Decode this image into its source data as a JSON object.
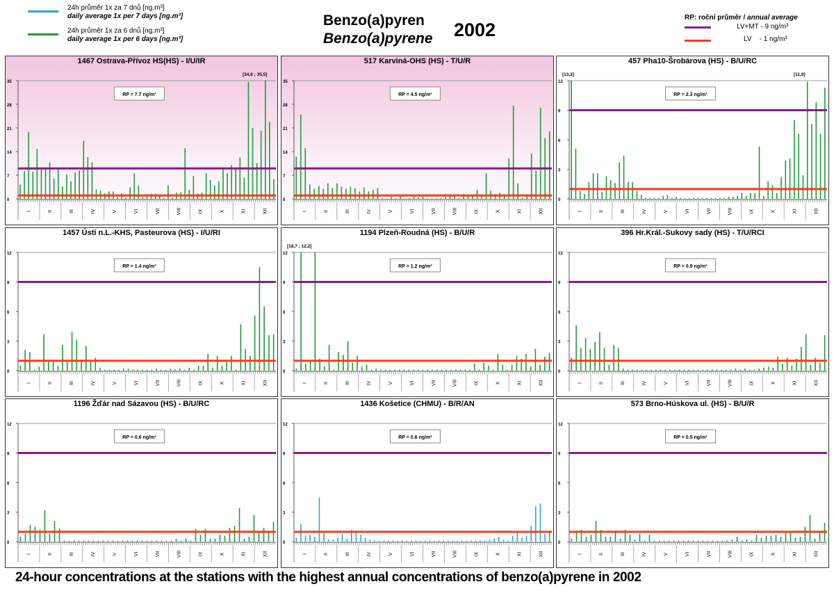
{
  "legend_left": [
    {
      "line1": "24h průměr 1x za 7 dnů [ng.m³]",
      "line2": "daily average 1x per 7 days [ng.m³]",
      "color": "#29a8d8"
    },
    {
      "line1": "24h průměr 1x za 6 dnů [ng.m³]",
      "line2": "daily average 1x per 6 days [ng.m³]",
      "color": "#1e9a3c"
    }
  ],
  "title": {
    "cz": "Benzo(a)pyren",
    "en": "Benzo(a)pyrene",
    "year": "2002"
  },
  "legend_right": {
    "header_bold": "RP:  roční průměr /",
    "header_italic": "annual average",
    "items": [
      {
        "label": "LV+MT  - 9 ng/m³",
        "color": "#8b1a8b",
        "value": 9
      },
      {
        "label": "LV    - 1 ng/m³",
        "color": "#ff3a10",
        "value": 1
      }
    ]
  },
  "caption": "24-hour concentrations at the stations with the highest annual concentrations of benzo(a)pyrene in 2002",
  "chart_data": [
    {
      "type": "bar",
      "title": "1467 Ostrava-Přívoz HS(HS) - I/U/IR",
      "rp": "RP = 7.7 ng/m³",
      "ymax": 35,
      "ticks": [
        0,
        7,
        14,
        21,
        28,
        35
      ],
      "color": "#1e9a3c",
      "pink": true,
      "annotations": [
        {
          "text": "[34,6 ; 35,5]",
          "pos": "right"
        }
      ],
      "months": [
        "I",
        "II",
        "III",
        "IV",
        "V",
        "VI",
        "VII",
        "VIII",
        "IX",
        "X",
        "XI",
        "XII"
      ],
      "values": [
        4.2,
        8.2,
        19.8,
        8,
        14.8,
        8.8,
        8.8,
        10.8,
        6,
        8.8,
        3.6,
        7.2,
        5.2,
        7.8,
        8.4,
        17.2,
        12.4,
        10.8,
        2.8,
        2.4,
        1.6,
        2.2,
        2.2,
        0.5,
        1.6,
        0.4,
        3.4,
        7.6,
        4,
        0.5,
        1.4,
        1.5,
        1.5,
        1.2,
        0.3,
        4,
        0.4,
        1.8,
        2,
        15,
        2.6,
        6.8,
        1.6,
        1.8,
        7.6,
        5.6,
        4,
        5.2,
        9.2,
        7.6,
        10,
        9.2,
        12.2,
        6.2,
        34.6,
        21,
        10.6,
        20.2,
        35.5,
        22.8,
        5.8
      ]
    },
    {
      "type": "bar",
      "title": "517 Karviná-OHS (HS) - T/U/R",
      "rp": "RP = 4.5 ng/m³",
      "ymax": 35,
      "ticks": [
        0,
        7,
        14,
        21,
        28,
        35
      ],
      "color": "#1e9a3c",
      "pink": true,
      "annotations": [],
      "months": [
        "I",
        "II",
        "III",
        "IV",
        "V",
        "VI",
        "VII",
        "VIII",
        "IX",
        "X",
        "XI",
        "XII"
      ],
      "values": [
        12.5,
        25,
        15,
        4.2,
        3,
        3.8,
        3,
        4.6,
        3.2,
        4.6,
        3.6,
        3,
        3.6,
        3.2,
        2.2,
        3.4,
        2.2,
        2.6,
        3.2,
        0.2,
        0.1,
        0.6,
        0.2,
        0.8,
        0.1,
        0.2,
        0.8,
        0.4,
        0.6,
        0.1,
        0.1,
        0.1,
        0.2,
        0.6,
        0.8,
        0.8,
        0.2,
        1.4,
        1,
        1,
        2.6,
        1.2,
        7.6,
        2.4,
        1.4,
        1.8,
        1.4,
        12,
        27.6,
        4.6,
        0.3,
        1.2,
        13.4,
        8.4,
        27,
        18,
        20
      ]
    },
    {
      "type": "bar",
      "title": "457 Pha10-Šrobárova (HS) - B/U/RC",
      "rp": "RP = 2.3 ng/m³",
      "ymax": 12,
      "ticks": [
        0,
        3,
        6,
        9,
        12
      ],
      "color": "#1e9a3c",
      "pink": false,
      "annotations": [
        {
          "text": "[13,2]",
          "pos": "left"
        },
        {
          "text": "[11,9]",
          "pos": "right"
        }
      ],
      "months": [
        "I",
        "II",
        "III",
        "IV",
        "V",
        "VI",
        "VII",
        "VIII",
        "IX",
        "X",
        "XI",
        "XII"
      ],
      "values": [
        13.2,
        5.1,
        0.8,
        0.5,
        1.7,
        2.6,
        2.6,
        0.7,
        2.3,
        1.9,
        1.6,
        3.7,
        4.4,
        1.7,
        1.7,
        0.8,
        0.4,
        0.1,
        0.1,
        0.1,
        0.1,
        0.3,
        0.4,
        0.1,
        0.2,
        0.1,
        0.05,
        0.1,
        0.1,
        0.1,
        0.1,
        0.1,
        0.1,
        0.1,
        0.1,
        0.1,
        0.2,
        0.2,
        0.3,
        0.6,
        0.3,
        0.6,
        0.6,
        5.3,
        0.3,
        1.8,
        1.4,
        0.6,
        2.2,
        3.9,
        4.1,
        8,
        6.6,
        2.4,
        11.9,
        7.6,
        9.8,
        6.6,
        11.3
      ]
    },
    {
      "type": "bar",
      "title": "1457 Ústí n.L.-KHS, Pasteurova (HS) - I/U/RI",
      "rp": "RP = 1.4 ng/m³",
      "ymax": 12,
      "ticks": [
        0,
        3,
        6,
        9,
        12
      ],
      "color": "#1e9a3c",
      "pink": false,
      "annotations": [],
      "months": [
        "I",
        "II",
        "III",
        "IV",
        "V",
        "VI",
        "VII",
        "VIII",
        "IX",
        "X",
        "XI",
        "XII"
      ],
      "values": [
        0.5,
        2.1,
        1.9,
        0.1,
        0.4,
        3.7,
        1.1,
        1.1,
        0.5,
        2.6,
        0.9,
        3.9,
        3.1,
        1,
        2.5,
        1,
        1.3,
        0.3,
        0.1,
        0.1,
        0.1,
        0.1,
        0.2,
        0.2,
        0.1,
        0.1,
        0.1,
        0.1,
        0.1,
        0.2,
        0.1,
        0.1,
        0.2,
        0.1,
        0.2,
        0.1,
        0.3,
        0.1,
        0.5,
        0.5,
        1.7,
        0.3,
        1.5,
        0.5,
        1.1,
        1.5,
        0.1,
        4.7,
        2.2,
        1.5,
        5.6,
        10.5,
        6.5,
        3.6,
        3.7
      ]
    },
    {
      "type": "bar",
      "title": "1194 Plzeň-Roudná (HS) - B/U/R",
      "rp": "RP = 1.2 ng/m³",
      "ymax": 12,
      "ticks": [
        0,
        3,
        6,
        9,
        12
      ],
      "color": "#1e9a3c",
      "pink": false,
      "annotations": [
        {
          "text": "[18,7 ; 12,2]",
          "pos": "left"
        }
      ],
      "months": [
        "I",
        "II",
        "III",
        "IV",
        "V",
        "VI",
        "VII",
        "VIII",
        "IX",
        "X",
        "XI",
        "XII"
      ],
      "values": [
        0.2,
        18.7,
        0.7,
        0.9,
        12.2,
        1.2,
        0.4,
        2.6,
        0.1,
        1.9,
        1.6,
        3,
        0.8,
        1.5,
        0.4,
        0.6,
        0.1,
        0.2,
        0.1,
        0.1,
        0.1,
        0.1,
        0.1,
        0.1,
        0.1,
        0.1,
        0.1,
        0.1,
        0.1,
        0.1,
        0.1,
        0.1,
        0.1,
        0.1,
        0.1,
        0.1,
        0.1,
        0.1,
        0.7,
        0.1,
        0.8,
        0.5,
        0.1,
        1.7,
        0.6,
        0.1,
        0.6,
        1.5,
        1.2,
        1.7,
        0.4,
        2.2,
        0.6,
        1.4,
        1.8
      ]
    },
    {
      "type": "bar",
      "title": "396 Hr.Král.-Sukovy sady (HS) - T/U/RCI",
      "rp": "RP = 0.9 ng/m³",
      "ymax": 12,
      "ticks": [
        0,
        3,
        6,
        9,
        12
      ],
      "color": "#1e9a3c",
      "pink": false,
      "annotations": [],
      "months": [
        "I",
        "II",
        "III",
        "IV",
        "V",
        "VI",
        "VII",
        "VIII",
        "IX",
        "X",
        "XI",
        "XII"
      ],
      "values": [
        1.3,
        4.6,
        2.3,
        3.3,
        2.2,
        2.9,
        3.9,
        2.3,
        0.6,
        2.6,
        2.3,
        0.2,
        0.1,
        0.1,
        0.1,
        0.1,
        0.1,
        0.1,
        0.1,
        0.1,
        0.1,
        0.1,
        0.1,
        0.1,
        0.1,
        0.1,
        0.1,
        0.1,
        0.1,
        0.1,
        0.1,
        0.1,
        0.1,
        0.1,
        0.1,
        0.2,
        0.1,
        0.2,
        0.1,
        0.1,
        0.2,
        0.3,
        0.4,
        0.3,
        1.4,
        0.7,
        1.3,
        0.5,
        1.2,
        2.4,
        3.7,
        0.6,
        1.3,
        0.8,
        3.6
      ]
    },
    {
      "type": "bar",
      "title": "1196 Žďár nad Sázavou (HS) - B/U/RC",
      "rp": "RP = 0.6 ng/m³",
      "ymax": 12,
      "ticks": [
        0,
        3,
        6,
        9,
        12
      ],
      "color": "#1e9a3c",
      "pink": false,
      "annotations": [],
      "months": [
        "I",
        "II",
        "III",
        "IV",
        "V",
        "VI",
        "VII",
        "VIII",
        "IX",
        "X",
        "XI",
        "XII"
      ],
      "values": [
        0.5,
        0.8,
        1.7,
        1.5,
        1.2,
        3.2,
        0.8,
        2.1,
        1.3,
        0.1,
        0.1,
        0.1,
        0.1,
        0.1,
        0.1,
        0.1,
        0.1,
        0.1,
        0.1,
        0.1,
        0.1,
        0.1,
        0.1,
        0.1,
        0.1,
        0.1,
        0.1,
        0.1,
        0.1,
        0.1,
        0.1,
        0.1,
        0.3,
        0.1,
        0.3,
        0.1,
        1.3,
        0.7,
        1.3,
        0.3,
        0.3,
        0.7,
        0.6,
        1.4,
        1.6,
        3.4,
        0.3,
        0.5,
        2.7,
        1.1,
        1.4,
        1.1,
        2
      ]
    },
    {
      "type": "bar",
      "title": "1436 Košetice (CHMU) - B/R/AN",
      "rp": "RP = 0.6 ng/m³",
      "ymax": 12,
      "ticks": [
        0,
        3,
        6,
        9,
        12
      ],
      "color": "#29a8d8",
      "pink": false,
      "annotations": [],
      "months": [
        "I",
        "II",
        "III",
        "IV",
        "V",
        "VI",
        "VII",
        "VIII",
        "IX",
        "X",
        "XI",
        "XII"
      ],
      "values": [
        0.4,
        1.8,
        0.6,
        0.7,
        0.5,
        4.5,
        0.9,
        0.2,
        0.2,
        0.4,
        0.8,
        0.3,
        1.2,
        1,
        0.7,
        0.4,
        0.2,
        0.1,
        0.1,
        0.1,
        0.1,
        0.1,
        0.1,
        0.1,
        0.1,
        0.1,
        0.1,
        0.1,
        0.1,
        0.1,
        0.1,
        0.1,
        0.1,
        0.1,
        0.1,
        0.1,
        0.1,
        0.1,
        0.1,
        0.1,
        0.1,
        0.1,
        0.2,
        0.3,
        0.5,
        0.2,
        0.1,
        0.6,
        0.9,
        0.4,
        0.6,
        1.6,
        3.6,
        3.9,
        0.8,
        1.1
      ]
    },
    {
      "type": "bar",
      "title": "573 Brno-Húskova ul. (HS) - B/U/R",
      "rp": "RP = 0.5 ng/m³",
      "ymax": 12,
      "ticks": [
        0,
        3,
        6,
        9,
        12
      ],
      "color": "#1e9a3c",
      "pink": false,
      "annotations": [],
      "months": [
        "I",
        "II",
        "III",
        "IV",
        "V",
        "VI",
        "VII",
        "VIII",
        "IX",
        "X",
        "XI",
        "XII"
      ],
      "values": [
        0.3,
        0.9,
        1.2,
        0.5,
        0.7,
        2.1,
        1.2,
        0.5,
        0.5,
        0.9,
        0.3,
        1.2,
        0.7,
        0.2,
        0.8,
        0.1,
        0.7,
        0.1,
        0.1,
        0.1,
        0.1,
        0.1,
        0.1,
        0.1,
        0.1,
        0.1,
        0.1,
        0.1,
        0.1,
        0.1,
        0.1,
        0.1,
        0.1,
        0.2,
        0.5,
        0.1,
        0.2,
        0.1,
        0.7,
        0.4,
        0.6,
        0.6,
        0.7,
        0.5,
        0.9,
        0.9,
        0.4,
        0.5,
        1.5,
        2.7,
        0.3,
        1.1,
        1.9
      ]
    }
  ]
}
